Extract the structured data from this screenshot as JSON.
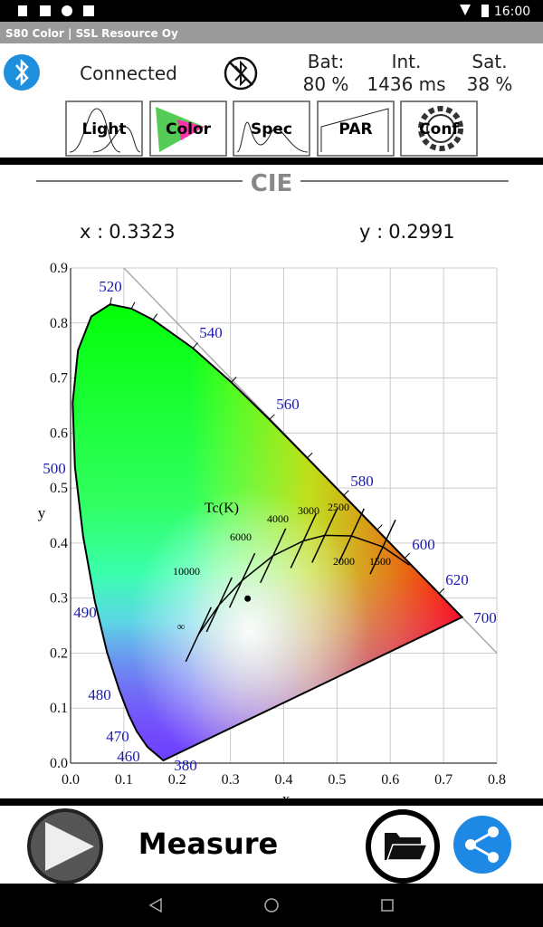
{
  "status_bar": {
    "time": "16:00"
  },
  "app_bar": {
    "title": "S80 Color |  SSL Resource Oy"
  },
  "header": {
    "connection": "Connected",
    "stats": [
      {
        "label": "Bat:",
        "value": "80 %"
      },
      {
        "label": "Int.",
        "value": "1436 ms"
      },
      {
        "label": "Sat.",
        "value": "38 %"
      }
    ]
  },
  "tabs": [
    "Light",
    "Color",
    "Spec",
    "PAR",
    "Conf"
  ],
  "section": {
    "title": "CIE"
  },
  "readouts": {
    "x_label": "x :",
    "y_label": "y :"
  },
  "chart_data": {
    "type": "scatter",
    "x": [
      0.3323
    ],
    "values": [
      0.2991
    ],
    "xlabel": "x",
    "ylabel": "y",
    "xlim": [
      0,
      0.8
    ],
    "ylim": [
      0,
      0.9
    ],
    "xticks": [
      {
        "value": 0,
        "label": "0.0"
      },
      0.1,
      0.2,
      0.3,
      0.4,
      0.5,
      0.6,
      0.7,
      0.8
    ],
    "yticks": [
      {
        "value": 0,
        "label": "0.0"
      },
      0.1,
      0.2,
      0.3,
      0.4,
      0.5,
      0.6,
      0.7,
      0.8,
      0.9
    ],
    "grid": true,
    "wavelength_labels": [
      "520",
      "540",
      "560",
      "580",
      "600",
      "620",
      "700",
      "500",
      "490",
      "480",
      "470",
      "460",
      "380"
    ],
    "cct_title": "Tc(K)",
    "cct_labels": [
      "10000",
      "6000",
      "4000",
      "3000",
      "2500",
      "2000",
      "1500",
      "∞"
    ]
  },
  "footer": {
    "action": "Measure"
  }
}
